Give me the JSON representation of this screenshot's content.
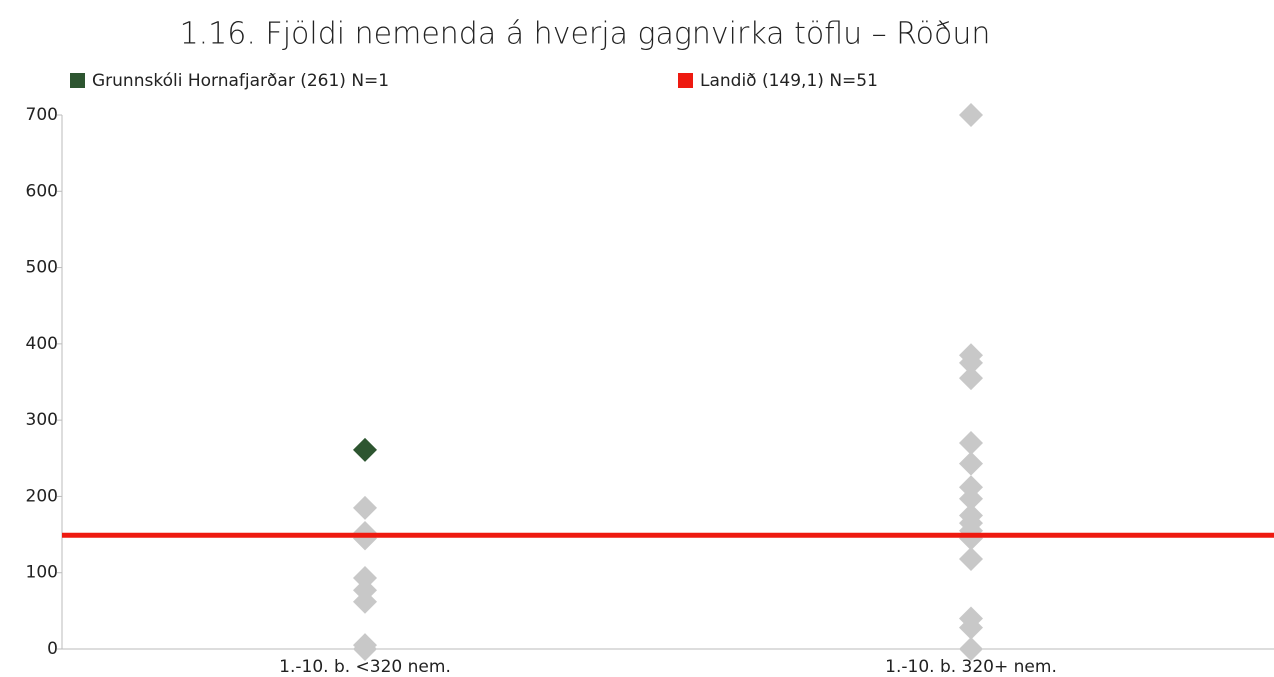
{
  "chart_data": {
    "type": "scatter",
    "title": "1.16. Fjöldi nemenda á hverja gagnvirka töflu – Röðun",
    "categories": [
      "1.-10. b. <320 nem.",
      "1.-10. b. 320+ nem."
    ],
    "series": [
      {
        "name": "Grunnskóli Hornafjarðar (261) N=1",
        "color": "#2d5530",
        "values": [
          261,
          null
        ]
      }
    ],
    "reference_line": {
      "name": "Landið (149,1) N=51",
      "color": "#ee1a10",
      "value": 149.1
    },
    "others_color": "#c8c8c8",
    "others": [
      [
        185,
        152,
        145,
        93,
        77,
        62,
        5,
        0
      ],
      [
        700,
        385,
        375,
        355,
        270,
        243,
        212,
        197,
        175,
        165,
        155,
        145,
        118,
        40,
        28,
        0
      ]
    ],
    "ylim": [
      0,
      700
    ],
    "yticks": [
      0,
      100,
      200,
      300,
      400,
      500,
      600,
      700
    ]
  }
}
